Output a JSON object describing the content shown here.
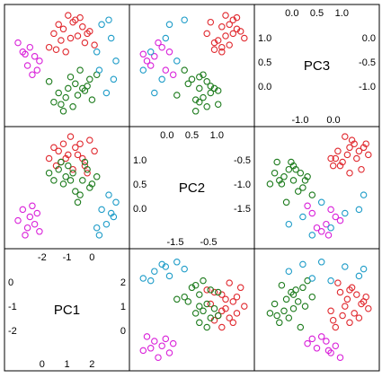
{
  "chart_data": {
    "type": "scatter",
    "variables": [
      "PC1",
      "PC2",
      "PC3"
    ],
    "colors": {
      "red": "#E0282E",
      "green": "#1B7A1B",
      "magenta": "#D920D9",
      "blue": "#1E9CC8"
    },
    "ranges": {
      "PC1": [
        -2.4,
        2.3
      ],
      "PC2": [
        -1.7,
        1.3
      ],
      "PC3": [
        -1.3,
        1.1
      ]
    },
    "diagonal_ticks": {
      "PC1": {
        "top": [
          "-2",
          "-1",
          "0"
        ],
        "right": [
          "2",
          "1",
          "0"
        ],
        "bottom": [
          "0",
          "1",
          "2"
        ],
        "left": [
          "0",
          "-1",
          "-2"
        ]
      },
      "PC2": {
        "top": [
          "0.0",
          "0.5",
          "1.0"
        ],
        "right": [
          "-0.5",
          "-1.0",
          "-1.5"
        ],
        "bottom": [
          "-1.5",
          "-0.5"
        ],
        "left": [
          "1.0",
          "0.5",
          "0.0"
        ]
      },
      "PC3": {
        "top": [
          "0.0",
          "0.5",
          "1.0"
        ],
        "right": [
          "0.0",
          "-0.5",
          "-1.0"
        ],
        "bottom": [
          "-1.0",
          "0.0"
        ],
        "left": [
          "1.0",
          "0.5",
          "0.0"
        ]
      }
    },
    "grid": false,
    "legend": "none",
    "points": [
      {
        "g": "red",
        "pc1": 0.0,
        "pc2": 0.7,
        "pc3": 1.0
      },
      {
        "g": "red",
        "pc1": 0.3,
        "pc2": 0.9,
        "pc3": 0.9
      },
      {
        "g": "red",
        "pc1": -0.4,
        "pc2": 0.8,
        "pc3": 0.8
      },
      {
        "g": "red",
        "pc1": 0.6,
        "pc2": 0.6,
        "pc3": 0.75
      },
      {
        "g": "red",
        "pc1": -0.2,
        "pc2": 1.0,
        "pc3": 0.7
      },
      {
        "g": "red",
        "pc1": 0.9,
        "pc2": 1.1,
        "pc3": 0.65
      },
      {
        "g": "red",
        "pc1": -0.6,
        "pc2": 0.9,
        "pc3": 0.6
      },
      {
        "g": "red",
        "pc1": 0.4,
        "pc2": 0.7,
        "pc3": 0.55
      },
      {
        "g": "red",
        "pc1": 0.1,
        "pc2": 1.2,
        "pc3": 0.5
      },
      {
        "g": "red",
        "pc1": -0.3,
        "pc2": 0.5,
        "pc3": 0.45
      },
      {
        "g": "red",
        "pc1": 0.7,
        "pc2": 0.4,
        "pc3": 0.4
      },
      {
        "g": "red",
        "pc1": 1.1,
        "pc2": 0.8,
        "pc3": 0.35
      },
      {
        "g": "red",
        "pc1": -0.8,
        "pc2": 0.6,
        "pc3": 0.3
      },
      {
        "g": "red",
        "pc1": 0.2,
        "pc2": 0.3,
        "pc3": 0.85
      },
      {
        "g": "red",
        "pc1": 0.5,
        "pc2": 1.0,
        "pc3": 0.95
      },
      {
        "g": "red",
        "pc1": -0.5,
        "pc2": 0.4,
        "pc3": 0.25
      },
      {
        "g": "red",
        "pc1": 0.8,
        "pc2": 0.2,
        "pc3": 0.6
      },
      {
        "g": "red",
        "pc1": -0.1,
        "pc2": 0.6,
        "pc3": 0.2
      },
      {
        "g": "green",
        "pc1": 0.3,
        "pc2": -0.3,
        "pc3": -0.5
      },
      {
        "g": "green",
        "pc1": 0.6,
        "pc2": 0.0,
        "pc3": -0.6
      },
      {
        "g": "green",
        "pc1": -0.1,
        "pc2": 0.1,
        "pc3": -0.8
      },
      {
        "g": "green",
        "pc1": 0.9,
        "pc2": -0.2,
        "pc3": -0.4
      },
      {
        "g": "green",
        "pc1": -0.4,
        "pc2": 0.3,
        "pc3": -0.7
      },
      {
        "g": "green",
        "pc1": 0.2,
        "pc2": 0.2,
        "pc3": -1.0
      },
      {
        "g": "green",
        "pc1": 1.2,
        "pc2": 0.1,
        "pc3": -0.3
      },
      {
        "g": "green",
        "pc1": -0.6,
        "pc2": 0.0,
        "pc3": -0.9
      },
      {
        "g": "green",
        "pc1": 0.5,
        "pc2": -0.4,
        "pc3": -0.2
      },
      {
        "g": "green",
        "pc1": 0.0,
        "pc2": 0.4,
        "pc3": -0.6
      },
      {
        "g": "green",
        "pc1": -0.2,
        "pc2": -0.1,
        "pc3": -1.1
      },
      {
        "g": "green",
        "pc1": 0.8,
        "pc2": 0.3,
        "pc3": -0.55
      },
      {
        "g": "green",
        "pc1": 0.4,
        "pc2": -0.6,
        "pc3": -0.75
      },
      {
        "g": "green",
        "pc1": -0.8,
        "pc2": 0.2,
        "pc3": -0.45
      },
      {
        "g": "green",
        "pc1": 1.0,
        "pc2": -0.1,
        "pc3": -0.85
      },
      {
        "g": "green",
        "pc1": 0.1,
        "pc2": 0.0,
        "pc3": -0.35
      },
      {
        "g": "green",
        "pc1": -0.3,
        "pc2": 0.5,
        "pc3": -0.95
      },
      {
        "g": "green",
        "pc1": 0.7,
        "pc2": 0.5,
        "pc3": -0.65
      },
      {
        "g": "magenta",
        "pc1": -1.6,
        "pc2": -1.0,
        "pc3": 0.3
      },
      {
        "g": "magenta",
        "pc1": -1.4,
        "pc2": -1.2,
        "pc3": 0.1
      },
      {
        "g": "magenta",
        "pc1": -1.9,
        "pc2": -0.8,
        "pc3": 0.2
      },
      {
        "g": "magenta",
        "pc1": -1.2,
        "pc2": -1.4,
        "pc3": 0.0
      },
      {
        "g": "magenta",
        "pc1": -1.7,
        "pc2": -1.3,
        "pc3": -0.1
      },
      {
        "g": "magenta",
        "pc1": -2.1,
        "pc2": -1.1,
        "pc3": 0.4
      },
      {
        "g": "magenta",
        "pc1": -1.3,
        "pc2": -0.9,
        "pc3": -0.2
      },
      {
        "g": "magenta",
        "pc1": -1.8,
        "pc2": -1.5,
        "pc3": 0.15
      },
      {
        "g": "magenta",
        "pc1": -1.5,
        "pc2": -0.7,
        "pc3": -0.3
      },
      {
        "g": "blue",
        "pc1": 1.7,
        "pc2": -0.4,
        "pc3": 0.9
      },
      {
        "g": "blue",
        "pc1": 1.4,
        "pc2": -0.8,
        "pc3": 0.8
      },
      {
        "g": "blue",
        "pc1": 1.9,
        "pc2": -1.0,
        "pc3": -0.4
      },
      {
        "g": "blue",
        "pc1": 1.2,
        "pc2": -1.3,
        "pc3": 0.2
      },
      {
        "g": "blue",
        "pc1": 1.6,
        "pc2": -1.2,
        "pc3": -0.7
      },
      {
        "g": "blue",
        "pc1": 2.0,
        "pc2": -0.6,
        "pc3": 0.0
      },
      {
        "g": "blue",
        "pc1": 1.3,
        "pc2": -1.5,
        "pc3": -0.2
      },
      {
        "g": "blue",
        "pc1": 1.8,
        "pc2": -0.9,
        "pc3": 0.5
      }
    ]
  }
}
